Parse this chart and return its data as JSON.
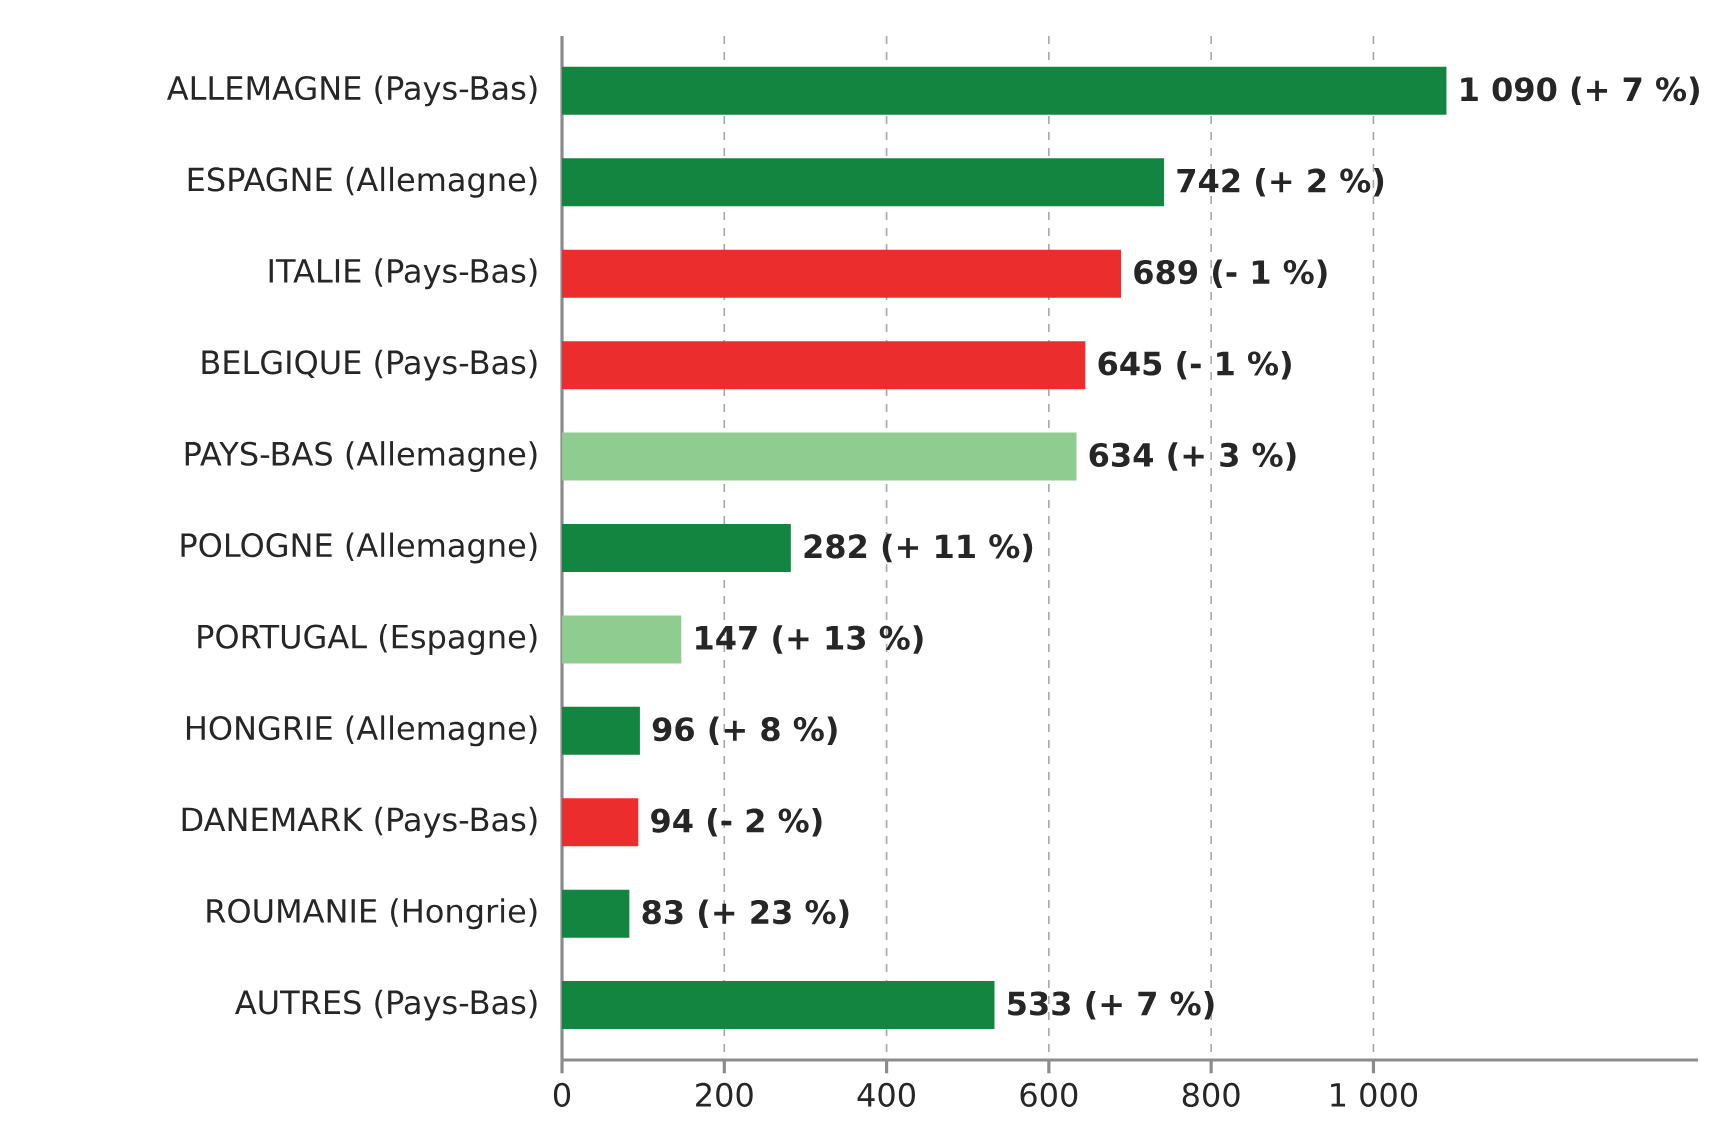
{
  "chart_data": {
    "type": "bar",
    "orientation": "horizontal",
    "categories": [
      "ALLEMAGNE (Pays-Bas)",
      "ESPAGNE (Allemagne)",
      "ITALIE (Pays-Bas)",
      "BELGIQUE (Pays-Bas)",
      "PAYS-BAS (Allemagne)",
      "POLOGNE (Allemagne)",
      "PORTUGAL (Espagne)",
      "HONGRIE (Allemagne)",
      "DANEMARK (Pays-Bas)",
      "ROUMANIE (Hongrie)",
      "AUTRES (Pays-Bas)"
    ],
    "values": [
      1090,
      742,
      689,
      645,
      634,
      282,
      147,
      96,
      94,
      83,
      533
    ],
    "colors": [
      "#138540",
      "#138540",
      "#ec2d2d",
      "#ec2d2d",
      "#8fcc8f",
      "#138540",
      "#8fcc8f",
      "#138540",
      "#ec2d2d",
      "#138540",
      "#138540"
    ],
    "value_labels": [
      "1 090 (+ 7 %)",
      "742 (+ 2 %)",
      "689 (- 1 %)",
      "645 (- 1 %)",
      "634 (+ 3 %)",
      "282 (+ 11 %)",
      "147 (+ 13 %)",
      "96 (+ 8 %)",
      "94 (- 2 %)",
      "83 (+ 23 %)",
      "533 (+ 7 %)"
    ],
    "xlim": [
      0,
      1400
    ],
    "xticks": [
      0,
      200,
      400,
      600,
      800,
      {
        "value": 1000,
        "label": "1 000"
      }
    ],
    "grid": "x"
  }
}
